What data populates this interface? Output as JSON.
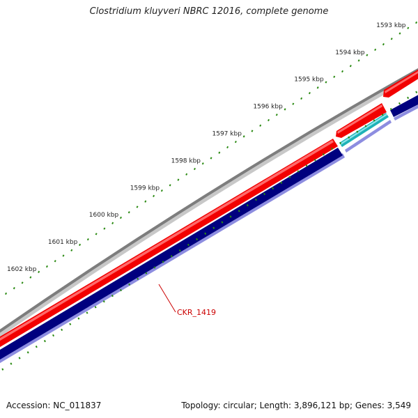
{
  "title": "Clostridium kluyveri NBRC 12016, complete genome",
  "footer": {
    "accession": "Accession: NC_011837",
    "summary": "Topology: circular; Length: 3,896,121 bp; Genes: 3,549"
  },
  "colors": {
    "tick": "#2a8a12",
    "backbone": "#8a8a8a",
    "forward_gene": "#ee0000",
    "reverse_gene": "#000080",
    "rna_gene": "#26b7bd",
    "label": "#cc0000"
  },
  "ruler": {
    "labels": [
      "1593 kbp",
      "1594 kbp",
      "1595 kbp",
      "1596 kbp",
      "1597 kbp",
      "1598 kbp",
      "1599 kbp",
      "1600 kbp",
      "1601 kbp",
      "1602 kbp"
    ]
  },
  "gene_label": "CKR_1419"
}
